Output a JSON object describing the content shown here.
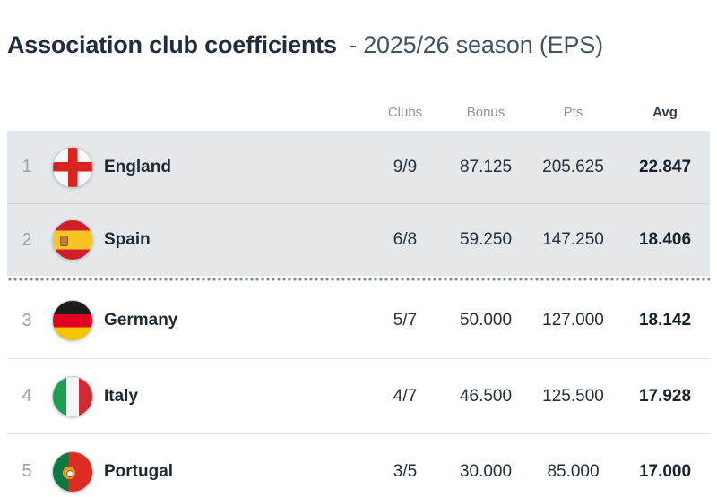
{
  "page": {
    "title_main": "Association club coefficients",
    "title_sub": "- 2025/26 season (EPS)"
  },
  "table": {
    "columns": {
      "clubs": "Clubs",
      "bonus": "Bonus",
      "pts": "Pts",
      "avg": "Avg"
    },
    "rows": [
      {
        "rank": "1",
        "country": "England",
        "flag": "england",
        "clubs": "9/9",
        "bonus": "87.125",
        "pts": "205.625",
        "avg": "22.847",
        "highlighted": true
      },
      {
        "rank": "2",
        "country": "Spain",
        "flag": "spain",
        "clubs": "6/8",
        "bonus": "59.250",
        "pts": "147.250",
        "avg": "18.406",
        "highlighted": true
      },
      {
        "rank": "3",
        "country": "Germany",
        "flag": "germany",
        "clubs": "5/7",
        "bonus": "50.000",
        "pts": "127.000",
        "avg": "18.142",
        "highlighted": false
      },
      {
        "rank": "4",
        "country": "Italy",
        "flag": "italy",
        "clubs": "4/7",
        "bonus": "46.500",
        "pts": "125.500",
        "avg": "17.928",
        "highlighted": false
      },
      {
        "rank": "5",
        "country": "Portugal",
        "flag": "portugal",
        "clubs": "3/5",
        "bonus": "30.000",
        "pts": "85.000",
        "avg": "17.000",
        "highlighted": false
      }
    ]
  },
  "colors": {
    "title_main": "#1f2d3d",
    "title_sub": "#3f5266",
    "header_label": "#8d959d",
    "highlight_row_bg": "#e5e8ea",
    "row_text": "#222e39",
    "rank_text": "#99a1a8",
    "dotted_separator": "#7d8893",
    "flag_red": "#d7241d",
    "flag_yellow": "#f7c325",
    "flag_green": "#1e9e51"
  }
}
